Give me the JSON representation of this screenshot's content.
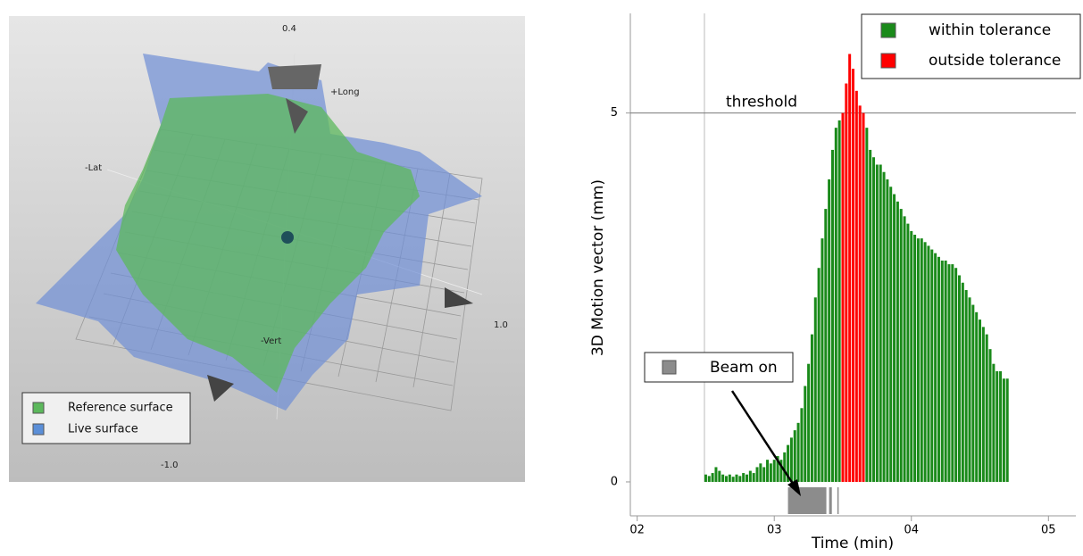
{
  "surface_view": {
    "axis_labels": [
      "0.4",
      "+Long",
      "-Lat",
      "1.0",
      "-Vert",
      "-1.0"
    ],
    "legend": [
      {
        "name": "Reference surface",
        "color": "#5cb85c"
      },
      {
        "name": "Live surface",
        "color": "#5b8fd8"
      }
    ]
  },
  "chart_data": {
    "type": "bar",
    "ylabel": "3D Motion vector (mm)",
    "xlabel": "Time (min)",
    "xlim": [
      1.95,
      5.2
    ],
    "ylim": [
      -0.46,
      6.35
    ],
    "xticks": [
      {
        "value": 2,
        "label": "02"
      },
      {
        "value": 3,
        "label": "03"
      },
      {
        "value": 4,
        "label": "04"
      },
      {
        "value": 5,
        "label": "05"
      }
    ],
    "yticks": [
      0,
      5
    ],
    "threshold": {
      "value": 5,
      "label": "threshold"
    },
    "legend": "upper right",
    "series": [
      {
        "name": "within tolerance",
        "color": "#1a8a1a",
        "x": [
          2.5,
          2.525,
          2.55,
          2.575,
          2.6,
          2.625,
          2.65,
          2.675,
          2.7,
          2.725,
          2.75,
          2.775,
          2.8,
          2.825,
          2.85,
          2.875,
          2.9,
          2.925,
          2.95,
          2.975,
          3.0,
          3.025,
          3.05,
          3.075,
          3.1,
          3.125,
          3.15,
          3.175,
          3.2,
          3.225,
          3.25,
          3.275,
          3.3,
          3.325,
          3.35,
          3.375,
          3.4,
          3.425,
          3.45,
          3.475,
          3.675,
          3.7,
          3.725,
          3.75,
          3.775,
          3.8,
          3.825,
          3.85,
          3.875,
          3.9,
          3.925,
          3.95,
          3.975,
          4.0,
          4.025,
          4.05,
          4.075,
          4.1,
          4.125,
          4.15,
          4.175,
          4.2,
          4.225,
          4.25,
          4.275,
          4.3,
          4.325,
          4.35,
          4.375,
          4.4,
          4.425,
          4.45,
          4.475,
          4.5,
          4.525,
          4.55,
          4.575,
          4.6,
          4.625,
          4.65,
          4.675,
          4.7
        ],
        "values": [
          0.1,
          0.08,
          0.12,
          0.2,
          0.15,
          0.1,
          0.08,
          0.1,
          0.07,
          0.1,
          0.08,
          0.12,
          0.1,
          0.15,
          0.12,
          0.2,
          0.25,
          0.2,
          0.3,
          0.25,
          0.3,
          0.35,
          0.3,
          0.4,
          0.5,
          0.6,
          0.7,
          0.8,
          1.0,
          1.3,
          1.6,
          2.0,
          2.5,
          2.9,
          3.3,
          3.7,
          4.1,
          4.5,
          4.8,
          4.9,
          4.8,
          4.5,
          4.4,
          4.3,
          4.3,
          4.2,
          4.1,
          4.0,
          3.9,
          3.8,
          3.7,
          3.6,
          3.5,
          3.4,
          3.35,
          3.3,
          3.3,
          3.25,
          3.2,
          3.15,
          3.1,
          3.05,
          3.0,
          3.0,
          2.95,
          2.95,
          2.9,
          2.8,
          2.7,
          2.6,
          2.5,
          2.4,
          2.3,
          2.2,
          2.1,
          2.0,
          1.8,
          1.6,
          1.5,
          1.5,
          1.4,
          1.4
        ]
      },
      {
        "name": "outside tolerance",
        "color": "#ff0000",
        "x": [
          3.5,
          3.525,
          3.55,
          3.575,
          3.6,
          3.625,
          3.65
        ],
        "values": [
          5.0,
          5.4,
          5.8,
          5.6,
          5.3,
          5.1,
          5.0
        ]
      }
    ],
    "beam_on": {
      "name": "Beam on",
      "color": "#8c8c8c",
      "intervals": [
        [
          3.1,
          3.38
        ],
        [
          3.4,
          3.42
        ],
        [
          3.46,
          3.47
        ]
      ]
    }
  }
}
